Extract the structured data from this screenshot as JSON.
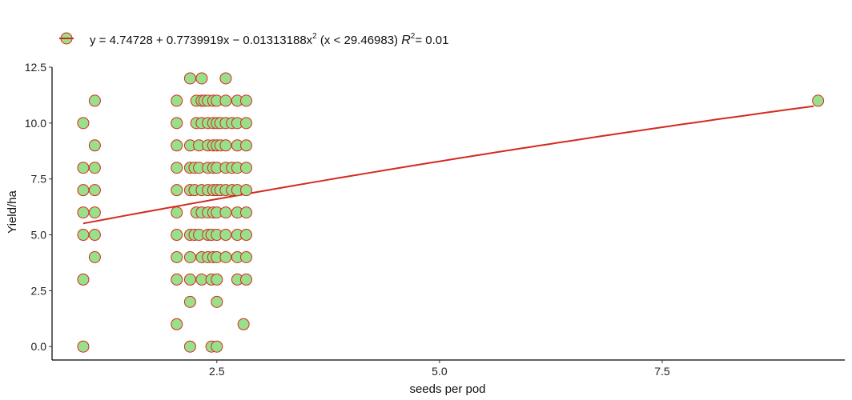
{
  "chart_data": {
    "type": "scatter",
    "title": "",
    "xlabel": "seeds per pod",
    "ylabel": "Yield/ha",
    "xlim": [
      0.65,
      9.55
    ],
    "ylim": [
      -0.6,
      12.5
    ],
    "xticks": [
      2.5,
      5.0,
      7.5
    ],
    "xtick_labels": [
      "2.5",
      "5.0",
      "7.5"
    ],
    "yticks": [
      0,
      2.5,
      5,
      7.5,
      10,
      12.5
    ],
    "ytick_labels": [
      "0.0",
      "2.5",
      "5.0",
      "7.5",
      "10.0",
      "12.5"
    ],
    "grid": false,
    "legend_position": "top-left",
    "equation": {
      "prefix": "y = 4.74728 + 0.7739919x − 0.01313188x",
      "exponent": "2",
      "condition": "(x < 29.46983)",
      "r2_label": "R",
      "r2_exponent": "2",
      "r2_value": "= 0.01"
    },
    "colors": {
      "point_fill": "#98e08c",
      "point_stroke": "#d42a1e",
      "fit_line": "#d42a1e",
      "axis": "#000000"
    },
    "fit": {
      "a": 4.74728,
      "b": 0.7739919,
      "c": -0.01313188,
      "x_range": [
        1.0,
        9.2
      ]
    },
    "points": [
      {
        "x": 1.0,
        "y": 0
      },
      {
        "x": 1.0,
        "y": 3
      },
      {
        "x": 1.0,
        "y": 5
      },
      {
        "x": 1.0,
        "y": 6
      },
      {
        "x": 1.0,
        "y": 7
      },
      {
        "x": 1.0,
        "y": 8
      },
      {
        "x": 1.0,
        "y": 10
      },
      {
        "x": 1.13,
        "y": 4
      },
      {
        "x": 1.13,
        "y": 5
      },
      {
        "x": 1.13,
        "y": 6
      },
      {
        "x": 1.13,
        "y": 7
      },
      {
        "x": 1.13,
        "y": 8
      },
      {
        "x": 1.13,
        "y": 9
      },
      {
        "x": 1.13,
        "y": 11
      },
      {
        "x": 2.05,
        "y": 1
      },
      {
        "x": 2.05,
        "y": 3
      },
      {
        "x": 2.05,
        "y": 4
      },
      {
        "x": 2.05,
        "y": 5
      },
      {
        "x": 2.05,
        "y": 6
      },
      {
        "x": 2.05,
        "y": 7
      },
      {
        "x": 2.05,
        "y": 8
      },
      {
        "x": 2.05,
        "y": 9
      },
      {
        "x": 2.05,
        "y": 10
      },
      {
        "x": 2.05,
        "y": 11
      },
      {
        "x": 2.2,
        "y": 0
      },
      {
        "x": 2.2,
        "y": 2
      },
      {
        "x": 2.2,
        "y": 3
      },
      {
        "x": 2.2,
        "y": 4
      },
      {
        "x": 2.2,
        "y": 5
      },
      {
        "x": 2.2,
        "y": 7
      },
      {
        "x": 2.2,
        "y": 8
      },
      {
        "x": 2.2,
        "y": 9
      },
      {
        "x": 2.2,
        "y": 12
      },
      {
        "x": 2.25,
        "y": 5
      },
      {
        "x": 2.25,
        "y": 7
      },
      {
        "x": 2.25,
        "y": 8
      },
      {
        "x": 2.27,
        "y": 6
      },
      {
        "x": 2.27,
        "y": 10
      },
      {
        "x": 2.27,
        "y": 11
      },
      {
        "x": 2.3,
        "y": 5
      },
      {
        "x": 2.3,
        "y": 8
      },
      {
        "x": 2.3,
        "y": 9
      },
      {
        "x": 2.33,
        "y": 3
      },
      {
        "x": 2.33,
        "y": 4
      },
      {
        "x": 2.33,
        "y": 6
      },
      {
        "x": 2.33,
        "y": 7
      },
      {
        "x": 2.33,
        "y": 10
      },
      {
        "x": 2.33,
        "y": 11
      },
      {
        "x": 2.33,
        "y": 12
      },
      {
        "x": 2.36,
        "y": 11
      },
      {
        "x": 2.4,
        "y": 4
      },
      {
        "x": 2.4,
        "y": 5
      },
      {
        "x": 2.4,
        "y": 6
      },
      {
        "x": 2.4,
        "y": 7
      },
      {
        "x": 2.4,
        "y": 8
      },
      {
        "x": 2.4,
        "y": 9
      },
      {
        "x": 2.4,
        "y": 10
      },
      {
        "x": 2.4,
        "y": 11
      },
      {
        "x": 2.44,
        "y": 0
      },
      {
        "x": 2.44,
        "y": 3
      },
      {
        "x": 2.44,
        "y": 5
      },
      {
        "x": 2.46,
        "y": 4
      },
      {
        "x": 2.46,
        "y": 6
      },
      {
        "x": 2.46,
        "y": 7
      },
      {
        "x": 2.46,
        "y": 8
      },
      {
        "x": 2.46,
        "y": 9
      },
      {
        "x": 2.46,
        "y": 10
      },
      {
        "x": 2.46,
        "y": 11
      },
      {
        "x": 2.5,
        "y": 0
      },
      {
        "x": 2.5,
        "y": 2
      },
      {
        "x": 2.5,
        "y": 3
      },
      {
        "x": 2.5,
        "y": 4
      },
      {
        "x": 2.5,
        "y": 5
      },
      {
        "x": 2.5,
        "y": 6
      },
      {
        "x": 2.5,
        "y": 7
      },
      {
        "x": 2.5,
        "y": 8
      },
      {
        "x": 2.5,
        "y": 9
      },
      {
        "x": 2.5,
        "y": 10
      },
      {
        "x": 2.5,
        "y": 11
      },
      {
        "x": 2.54,
        "y": 7
      },
      {
        "x": 2.54,
        "y": 9
      },
      {
        "x": 2.54,
        "y": 10
      },
      {
        "x": 2.6,
        "y": 4
      },
      {
        "x": 2.6,
        "y": 5
      },
      {
        "x": 2.6,
        "y": 6
      },
      {
        "x": 2.6,
        "y": 7
      },
      {
        "x": 2.6,
        "y": 8
      },
      {
        "x": 2.6,
        "y": 9
      },
      {
        "x": 2.6,
        "y": 10
      },
      {
        "x": 2.6,
        "y": 11
      },
      {
        "x": 2.6,
        "y": 12
      },
      {
        "x": 2.67,
        "y": 7
      },
      {
        "x": 2.67,
        "y": 8
      },
      {
        "x": 2.67,
        "y": 10
      },
      {
        "x": 2.73,
        "y": 3
      },
      {
        "x": 2.73,
        "y": 4
      },
      {
        "x": 2.73,
        "y": 5
      },
      {
        "x": 2.73,
        "y": 6
      },
      {
        "x": 2.73,
        "y": 7
      },
      {
        "x": 2.73,
        "y": 8
      },
      {
        "x": 2.73,
        "y": 9
      },
      {
        "x": 2.73,
        "y": 10
      },
      {
        "x": 2.73,
        "y": 11
      },
      {
        "x": 2.8,
        "y": 1
      },
      {
        "x": 2.83,
        "y": 3
      },
      {
        "x": 2.83,
        "y": 4
      },
      {
        "x": 2.83,
        "y": 5
      },
      {
        "x": 2.83,
        "y": 6
      },
      {
        "x": 2.83,
        "y": 7
      },
      {
        "x": 2.83,
        "y": 8
      },
      {
        "x": 2.83,
        "y": 9
      },
      {
        "x": 2.83,
        "y": 10
      },
      {
        "x": 2.83,
        "y": 11
      },
      {
        "x": 9.25,
        "y": 11
      }
    ]
  }
}
